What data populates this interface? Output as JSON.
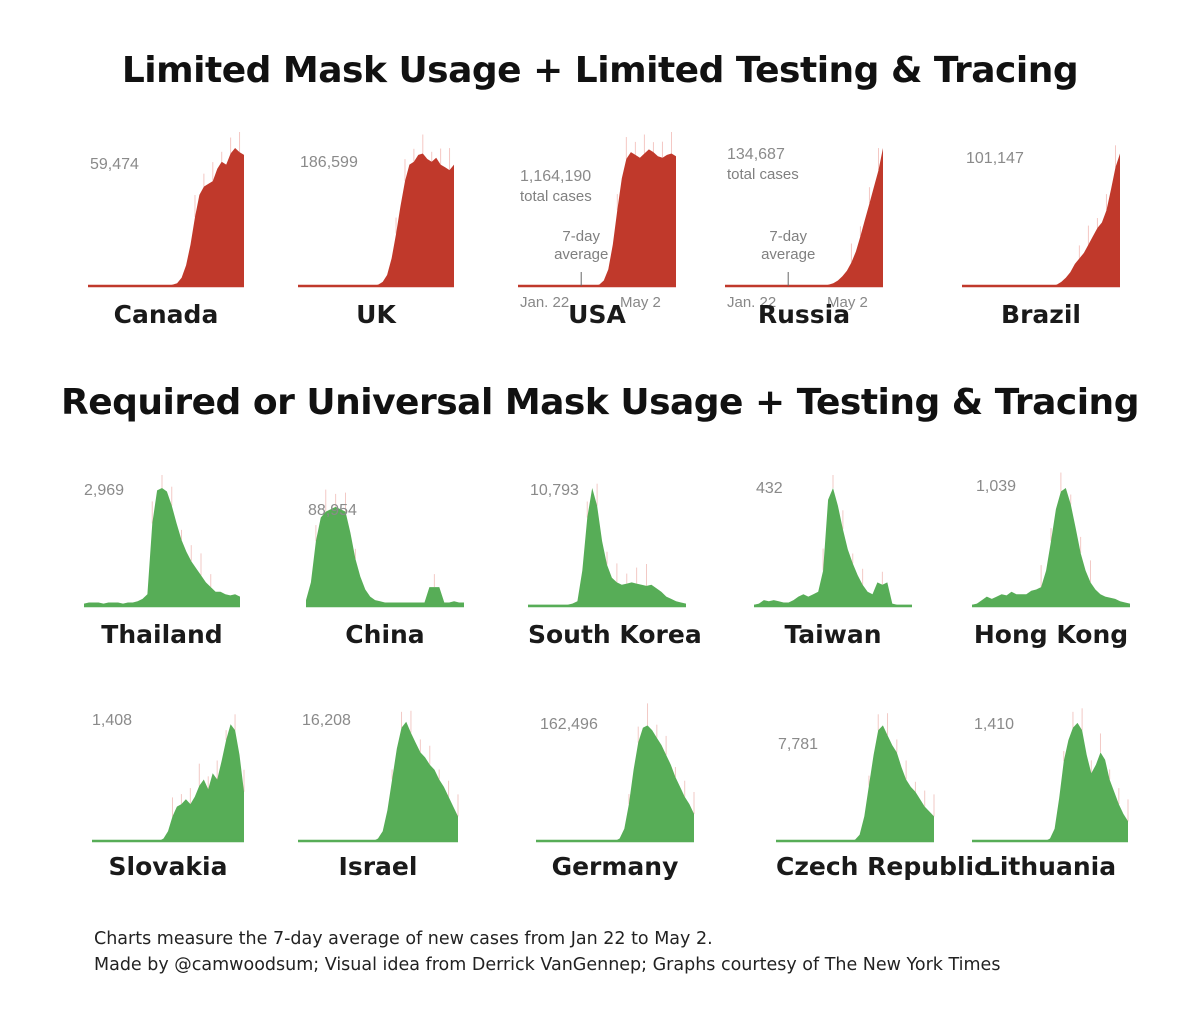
{
  "titles": {
    "top": "Limited Mask Usage + Limited Testing & Tracing",
    "bottom": "Required or Universal Mask Usage + Testing & Tracing"
  },
  "footer": {
    "line1": "Charts measure the 7-day average of new cases from Jan 22 to May 2.",
    "line2": "Made by @camwoodsum; Visual idea from Derrick VanGennep; Graphs courtesy of The New York Times"
  },
  "colors": {
    "red": "#c0392b",
    "green": "#57ad57",
    "spike": "#f4c7c3",
    "spike_green": "#f2c9c5"
  },
  "chart_data": [
    {
      "type": "area",
      "group": "limited",
      "name": "Canada",
      "peak_label": "59,474",
      "values": [
        0,
        0,
        0,
        0,
        0,
        0,
        0,
        0,
        0,
        0,
        0,
        0,
        0,
        0,
        0,
        0,
        0,
        0,
        0,
        0.01,
        0.02,
        0.06,
        0.15,
        0.3,
        0.5,
        0.66,
        0.72,
        0.74,
        0.76,
        0.85,
        0.9,
        0.88,
        0.96,
        1.0,
        0.97,
        0.95
      ]
    },
    {
      "type": "area",
      "group": "limited",
      "name": "UK",
      "peak_label": "186,599",
      "values": [
        0,
        0,
        0,
        0,
        0,
        0,
        0,
        0,
        0,
        0,
        0,
        0,
        0,
        0,
        0,
        0,
        0,
        0,
        0.01,
        0.03,
        0.08,
        0.2,
        0.38,
        0.58,
        0.76,
        0.88,
        0.9,
        0.95,
        0.96,
        0.92,
        0.9,
        0.93,
        0.88,
        0.86,
        0.84,
        0.88
      ]
    },
    {
      "type": "area",
      "group": "limited",
      "name": "USA",
      "peak_label": "1,164,190",
      "note": "total cases",
      "avg_note": "7-day average",
      "x_start": "Jan. 22",
      "x_end": "May 2",
      "values": [
        0,
        0,
        0,
        0,
        0,
        0,
        0,
        0,
        0,
        0,
        0,
        0,
        0,
        0,
        0,
        0,
        0,
        0,
        0.01,
        0.04,
        0.12,
        0.3,
        0.55,
        0.78,
        0.92,
        0.97,
        0.95,
        0.93,
        0.96,
        0.99,
        0.97,
        0.94,
        0.93,
        0.95,
        0.96,
        0.94
      ]
    },
    {
      "type": "area",
      "group": "limited",
      "name": "Russia",
      "peak_label": "134,687",
      "note": "total cases",
      "avg_note": "7-day average",
      "x_start": "Jan. 22",
      "x_end": "May 2",
      "values": [
        0,
        0,
        0,
        0,
        0,
        0,
        0,
        0,
        0,
        0,
        0,
        0,
        0,
        0,
        0,
        0,
        0,
        0,
        0,
        0,
        0,
        0,
        0,
        0.01,
        0.02,
        0.04,
        0.07,
        0.11,
        0.17,
        0.25,
        0.36,
        0.48,
        0.6,
        0.72,
        0.84,
        1.0
      ]
    },
    {
      "type": "area",
      "group": "limited",
      "name": "Brazil",
      "peak_label": "101,147",
      "values": [
        0,
        0,
        0,
        0,
        0,
        0,
        0,
        0,
        0,
        0,
        0,
        0,
        0,
        0,
        0,
        0,
        0,
        0,
        0,
        0,
        0,
        0.01,
        0.03,
        0.06,
        0.1,
        0.16,
        0.2,
        0.24,
        0.3,
        0.36,
        0.42,
        0.46,
        0.55,
        0.7,
        0.86,
        0.96
      ]
    },
    {
      "type": "area",
      "group": "masks",
      "name": "Thailand",
      "peak_label": "2,969",
      "values": [
        0.02,
        0.03,
        0.03,
        0.03,
        0.02,
        0.03,
        0.03,
        0.03,
        0.02,
        0.03,
        0.03,
        0.04,
        0.06,
        0.1,
        0.7,
        0.98,
        1.0,
        0.97,
        0.85,
        0.7,
        0.56,
        0.46,
        0.38,
        0.32,
        0.26,
        0.2,
        0.16,
        0.12,
        0.12,
        0.1,
        0.09,
        0.1,
        0.08
      ]
    },
    {
      "type": "area",
      "group": "masks",
      "name": "China",
      "peak_label": "88,954",
      "values": [
        0.05,
        0.2,
        0.55,
        0.75,
        0.8,
        0.82,
        0.84,
        0.82,
        0.8,
        0.62,
        0.4,
        0.25,
        0.14,
        0.08,
        0.05,
        0.04,
        0.03,
        0.03,
        0.03,
        0.03,
        0.03,
        0.03,
        0.03,
        0.03,
        0.03,
        0.16,
        0.16,
        0.16,
        0.03,
        0.03,
        0.04,
        0.03,
        0.03
      ]
    },
    {
      "type": "area",
      "group": "masks",
      "name": "South Korea",
      "peak_label": "10,793",
      "values": [
        0.01,
        0.01,
        0.01,
        0.01,
        0.01,
        0.01,
        0.01,
        0.01,
        0.01,
        0.02,
        0.04,
        0.3,
        0.75,
        1.0,
        0.85,
        0.55,
        0.35,
        0.24,
        0.2,
        0.18,
        0.19,
        0.2,
        0.19,
        0.18,
        0.17,
        0.18,
        0.15,
        0.12,
        0.08,
        0.06,
        0.04,
        0.03,
        0.02
      ]
    },
    {
      "type": "area",
      "group": "masks",
      "name": "Taiwan",
      "peak_label": "432",
      "values": [
        0.01,
        0.02,
        0.05,
        0.04,
        0.05,
        0.04,
        0.03,
        0.03,
        0.05,
        0.08,
        0.1,
        0.08,
        0.1,
        0.12,
        0.3,
        0.9,
        1.0,
        0.85,
        0.65,
        0.48,
        0.36,
        0.26,
        0.18,
        0.12,
        0.1,
        0.2,
        0.18,
        0.2,
        0.02,
        0.01,
        0.01,
        0.01,
        0.01
      ]
    },
    {
      "type": "area",
      "group": "masks",
      "name": "Hong Kong",
      "peak_label": "1,039",
      "values": [
        0.01,
        0.02,
        0.05,
        0.08,
        0.06,
        0.08,
        0.1,
        0.09,
        0.12,
        0.1,
        0.1,
        0.1,
        0.13,
        0.14,
        0.16,
        0.3,
        0.55,
        0.82,
        0.97,
        1.0,
        0.86,
        0.66,
        0.45,
        0.3,
        0.2,
        0.14,
        0.1,
        0.08,
        0.07,
        0.06,
        0.04,
        0.03,
        0.02
      ]
    },
    {
      "type": "area",
      "group": "masks",
      "name": "Slovakia",
      "peak_label": "1,408",
      "values": [
        0,
        0,
        0,
        0,
        0,
        0,
        0,
        0,
        0,
        0,
        0,
        0,
        0,
        0,
        0,
        0,
        0.02,
        0.08,
        0.2,
        0.28,
        0.3,
        0.34,
        0.3,
        0.36,
        0.45,
        0.5,
        0.42,
        0.55,
        0.5,
        0.65,
        0.82,
        0.95,
        0.9,
        0.7,
        0.4
      ]
    },
    {
      "type": "area",
      "group": "masks",
      "name": "Israel",
      "peak_label": "16,208",
      "values": [
        0,
        0,
        0,
        0,
        0,
        0,
        0,
        0,
        0,
        0,
        0,
        0,
        0,
        0,
        0,
        0,
        0,
        0.02,
        0.08,
        0.25,
        0.5,
        0.75,
        0.92,
        0.97,
        0.88,
        0.8,
        0.72,
        0.68,
        0.62,
        0.58,
        0.5,
        0.44,
        0.36,
        0.28,
        0.2
      ]
    },
    {
      "type": "area",
      "group": "masks",
      "name": "Germany",
      "peak_label": "162,496",
      "values": [
        0,
        0,
        0,
        0,
        0,
        0,
        0,
        0,
        0,
        0,
        0,
        0,
        0,
        0,
        0,
        0,
        0,
        0,
        0.02,
        0.1,
        0.3,
        0.58,
        0.8,
        0.92,
        0.94,
        0.9,
        0.84,
        0.78,
        0.7,
        0.62,
        0.52,
        0.44,
        0.36,
        0.3,
        0.22
      ]
    },
    {
      "type": "area",
      "group": "masks",
      "name": "Czech Republic",
      "peak_label": "7,781",
      "values": [
        0,
        0,
        0,
        0,
        0,
        0,
        0,
        0,
        0,
        0,
        0,
        0,
        0,
        0,
        0,
        0,
        0,
        0.01,
        0.05,
        0.2,
        0.45,
        0.7,
        0.9,
        0.94,
        0.86,
        0.78,
        0.72,
        0.6,
        0.5,
        0.44,
        0.4,
        0.34,
        0.28,
        0.24,
        0.2
      ]
    },
    {
      "type": "area",
      "group": "masks",
      "name": "Lithuania",
      "peak_label": "1,410",
      "values": [
        0,
        0,
        0,
        0,
        0,
        0,
        0,
        0,
        0,
        0,
        0,
        0,
        0,
        0,
        0,
        0,
        0,
        0.02,
        0.1,
        0.35,
        0.65,
        0.82,
        0.92,
        0.96,
        0.9,
        0.7,
        0.55,
        0.62,
        0.72,
        0.66,
        0.5,
        0.4,
        0.3,
        0.22,
        0.16
      ]
    }
  ]
}
